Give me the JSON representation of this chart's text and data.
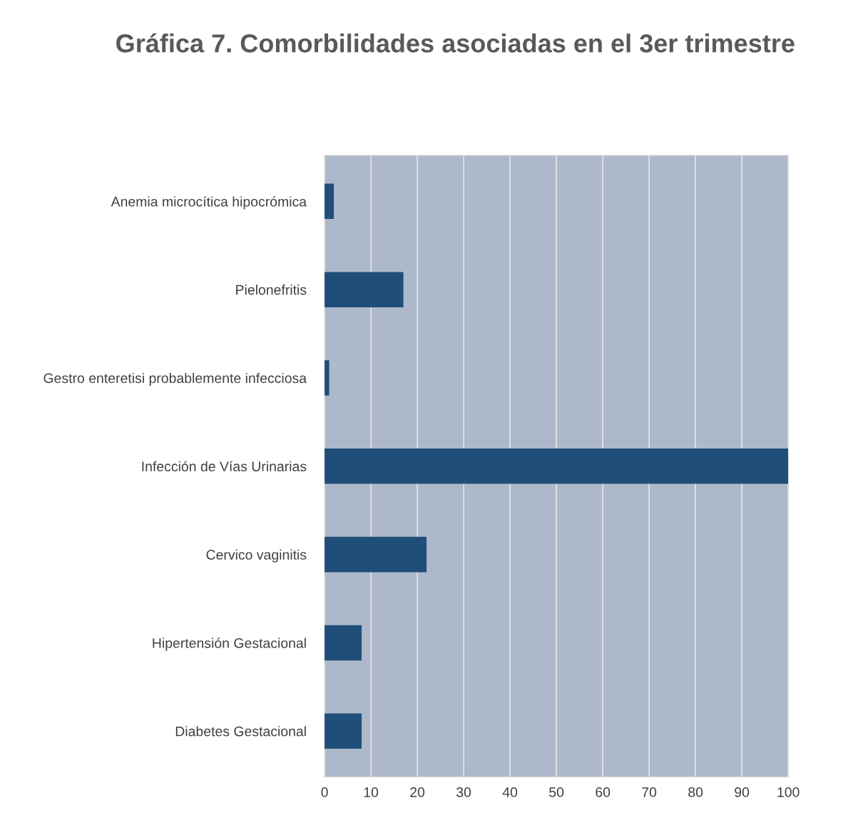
{
  "chart_data": {
    "type": "bar",
    "orientation": "horizontal",
    "title": "Gráfica 7. Comorbilidades asociadas en el 3er trimestre",
    "categories": [
      "Anemia microcítica hipocrómica",
      "Pielonefritis",
      "Gestro enteretisi probablemente infecciosa",
      "Infección de Vías Urinarias",
      "Cervico vaginitis",
      "Hipertensión Gestacional",
      "Diabetes Gestacional"
    ],
    "values": [
      2,
      17,
      1,
      100,
      22,
      8,
      8
    ],
    "color": "#1f4e79",
    "xlim": [
      0,
      100
    ],
    "xticks": [
      0,
      10,
      20,
      30,
      40,
      50,
      60,
      70,
      80,
      90,
      100
    ],
    "grid": "x"
  }
}
